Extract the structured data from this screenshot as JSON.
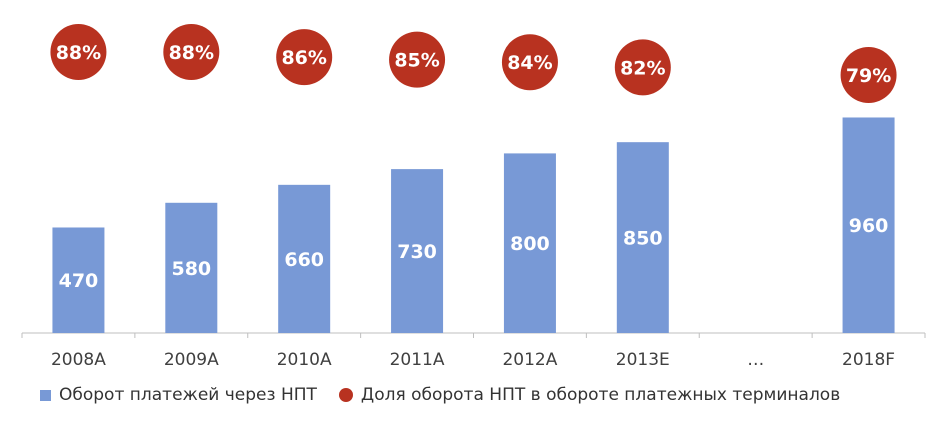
{
  "chart_data": {
    "type": "bar",
    "categories": [
      "2008A",
      "2009A",
      "2010A",
      "2011A",
      "2012A",
      "2013E",
      "…",
      "2018F"
    ],
    "series": [
      {
        "name": "Оборот платежей через НПТ",
        "kind": "bar",
        "values": [
          470,
          580,
          660,
          730,
          800,
          850,
          null,
          960
        ],
        "labels": [
          "470",
          "580",
          "660",
          "730",
          "800",
          "850",
          "",
          "960"
        ]
      },
      {
        "name": "Доля оборота НПТ в обороте платежных терминалов",
        "kind": "dot",
        "values": [
          88,
          88,
          86,
          85,
          84,
          82,
          null,
          79
        ],
        "labels": [
          "88%",
          "88%",
          "86%",
          "85%",
          "84%",
          "82%",
          "",
          "79%"
        ]
      }
    ],
    "ylim": [
      0,
      1000
    ],
    "grid": false,
    "legend_position": "bottom",
    "colors": {
      "bar": "#7899d6",
      "dot": "#b83220",
      "axis": "#bfbfbf",
      "tick_text": "#404040"
    }
  }
}
